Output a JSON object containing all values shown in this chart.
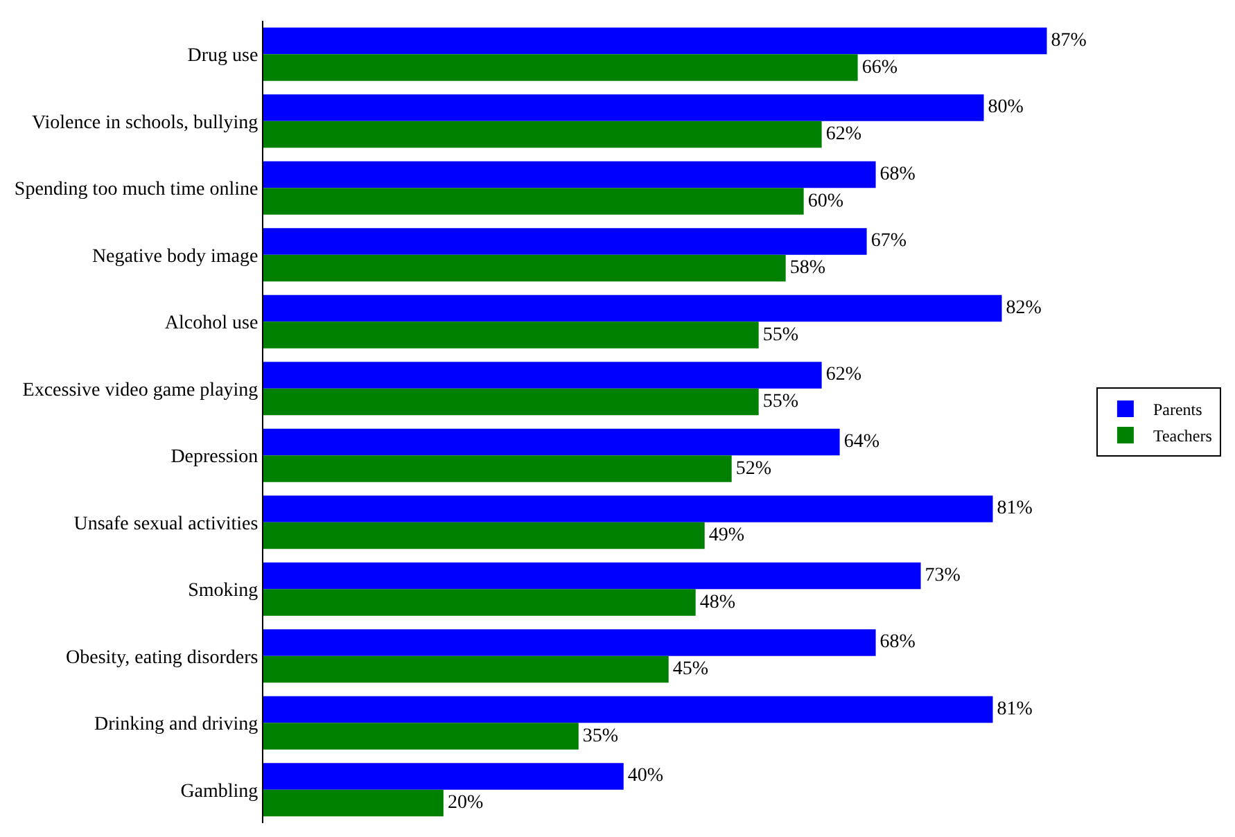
{
  "chart_data": {
    "type": "bar",
    "orientation": "horizontal",
    "categories": [
      "Drug use",
      "Violence in schools, bullying",
      "Spending too much time online",
      "Negative body image",
      "Alcohol use",
      "Excessive video game playing",
      "Depression",
      "Unsafe sexual activities",
      "Smoking",
      "Obesity, eating disorders",
      "Drinking and driving",
      "Gambling"
    ],
    "series": [
      {
        "name": "Parents",
        "color": "#0000ff",
        "values": [
          87,
          80,
          68,
          67,
          82,
          62,
          64,
          81,
          73,
          68,
          81,
          40
        ],
        "value_labels": [
          "87%",
          "80%",
          "68%",
          "67%",
          "82%",
          "62%",
          "64%",
          "81%",
          "73%",
          "68%",
          "81%",
          "40%"
        ]
      },
      {
        "name": "Teachers",
        "color": "#008000",
        "values": [
          66,
          62,
          60,
          58,
          55,
          55,
          52,
          49,
          48,
          45,
          35,
          20
        ],
        "value_labels": [
          "66%",
          "62%",
          "60%",
          "58%",
          "55%",
          "55%",
          "52%",
          "49%",
          "48%",
          "45%",
          "35%",
          "20%"
        ]
      }
    ],
    "legend": "right",
    "grid": false
  }
}
